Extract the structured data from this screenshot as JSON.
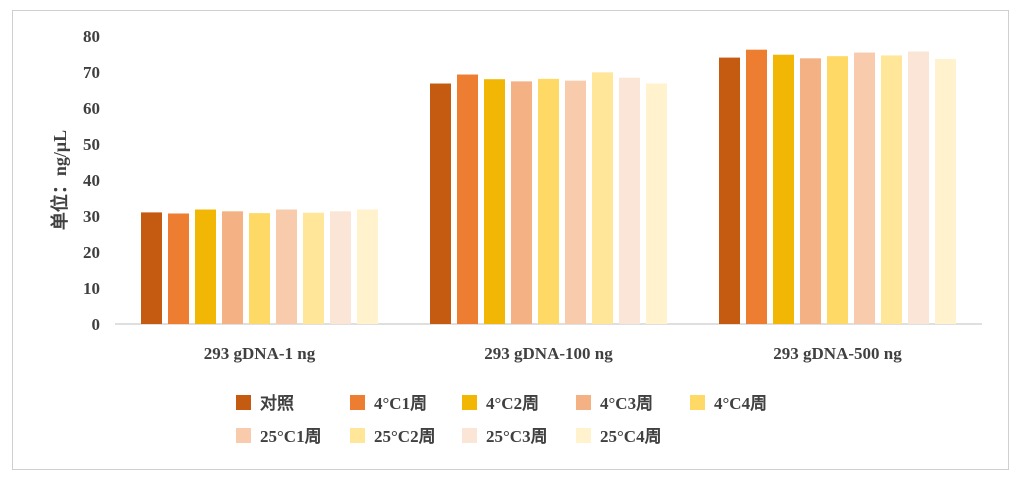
{
  "chart_data": {
    "type": "bar",
    "ylabel": "单位：ng/μL",
    "xlabel": "",
    "ylim": [
      0,
      80
    ],
    "yticks": [
      0,
      10,
      20,
      30,
      40,
      50,
      60,
      70,
      80
    ],
    "grid": false,
    "legend_position": "bottom",
    "categories": [
      "293 gDNA-1 ng",
      "293 gDNA-100 ng",
      "293 gDNA-500 ng"
    ],
    "series": [
      {
        "name": "对照",
        "color": "#C55A11",
        "values": [
          31.0,
          66.8,
          74.0
        ]
      },
      {
        "name": "4°C1周",
        "color": "#ED7D31",
        "values": [
          30.7,
          69.3,
          76.2
        ]
      },
      {
        "name": "4°C2周",
        "color": "#F2B705",
        "values": [
          31.8,
          68.0,
          74.8
        ]
      },
      {
        "name": "4°C3周",
        "color": "#F4B183",
        "values": [
          31.3,
          67.4,
          73.8
        ]
      },
      {
        "name": "4°C4周",
        "color": "#FFD966",
        "values": [
          30.8,
          68.1,
          74.4
        ]
      },
      {
        "name": "25°C1周",
        "color": "#F8CBAD",
        "values": [
          31.8,
          67.6,
          75.4
        ]
      },
      {
        "name": "25°C2周",
        "color": "#FFE699",
        "values": [
          30.9,
          69.9,
          74.6
        ]
      },
      {
        "name": "25°C3周",
        "color": "#FBE5D6",
        "values": [
          31.3,
          68.4,
          75.7
        ]
      },
      {
        "name": "25°C4周",
        "color": "#FFF2CC",
        "values": [
          31.8,
          66.8,
          73.6
        ]
      }
    ]
  }
}
